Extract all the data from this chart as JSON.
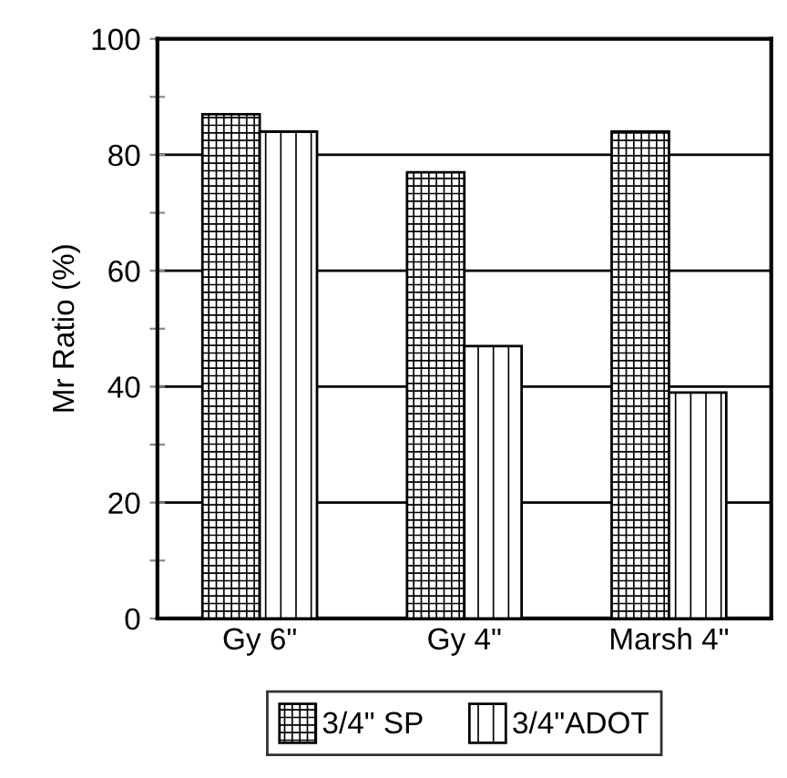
{
  "chart_data": {
    "type": "bar",
    "ylabel": "Mr Ratio (%)",
    "categories": [
      "Gy 6\"",
      "Gy 4\"",
      "Marsh 4\""
    ],
    "series": [
      {
        "name": "3/4\" SP",
        "color": "#000000",
        "values": [
          87,
          77,
          84
        ]
      },
      {
        "name": "3/4\"ADOT",
        "color": "#000000",
        "values": [
          84,
          47,
          39
        ]
      }
    ],
    "ylim": [
      0,
      100
    ],
    "yticks": [
      0,
      {
        "value": 10,
        "label": null
      },
      20,
      {
        "value": 30,
        "label": null
      },
      40,
      {
        "value": 50,
        "label": null
      },
      60,
      {
        "value": 70,
        "label": null
      },
      80,
      {
        "value": 90,
        "label": null
      },
      100
    ],
    "grid": "y",
    "legend": "bottom"
  }
}
